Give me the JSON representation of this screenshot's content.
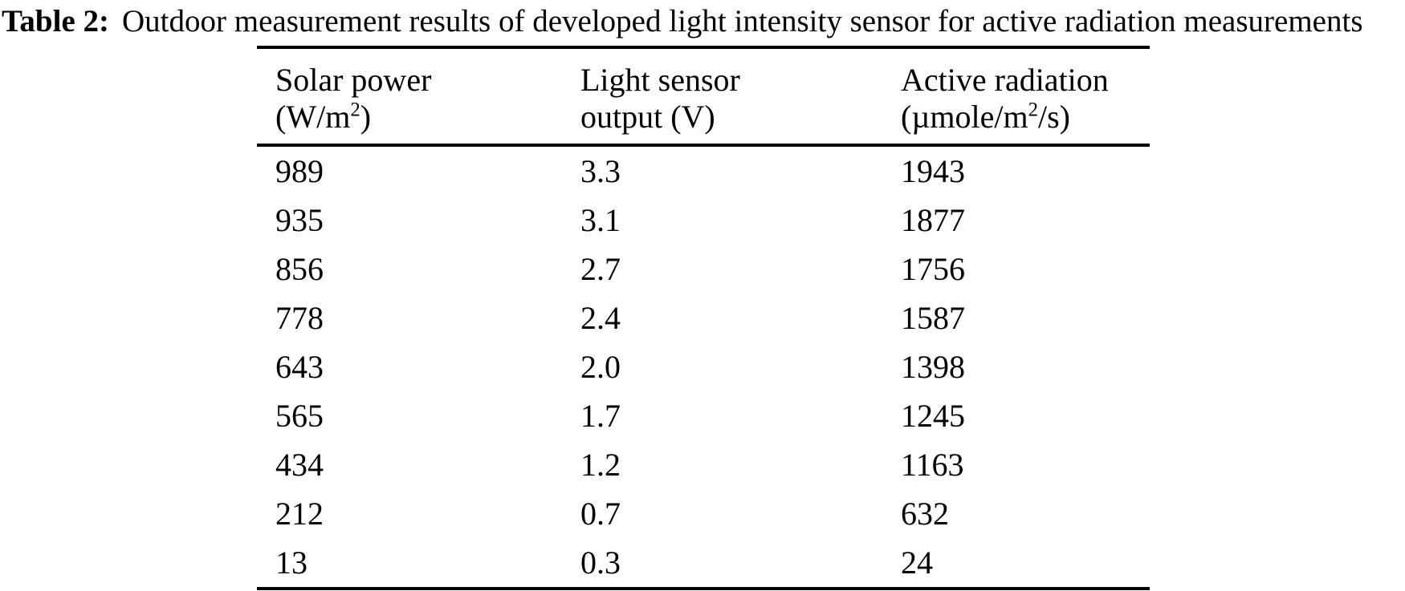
{
  "title": {
    "prefix": "Table 2:",
    "text": "Outdoor measurement results of developed light intensity sensor for active radiation measurements"
  },
  "table": {
    "header": [
      {
        "line1": "Solar power",
        "unit_pre": "(W/m",
        "unit_sup": "2",
        "unit_post": ")"
      },
      {
        "line1": "Light sensor",
        "unit_pre": "output (V)",
        "unit_sup": "",
        "unit_post": ""
      },
      {
        "line1": "Active radiation",
        "unit_pre": "(µmole/m",
        "unit_sup": "2",
        "unit_post": "/s)"
      }
    ],
    "rows": [
      [
        "989",
        "3.3",
        "1943"
      ],
      [
        "935",
        "3.1",
        "1877"
      ],
      [
        "856",
        "2.7",
        "1756"
      ],
      [
        "778",
        "2.4",
        "1587"
      ],
      [
        "643",
        "2.0",
        "1398"
      ],
      [
        "565",
        "1.7",
        "1245"
      ],
      [
        "434",
        "1.2",
        "1163"
      ],
      [
        "212",
        "0.7",
        "632"
      ],
      [
        "13",
        "0.3",
        "24"
      ]
    ]
  },
  "chart_data": {
    "type": "table",
    "title": "Table 2: Outdoor measurement results of developed light intensity sensor for active radiation measurements",
    "columns": [
      "Solar power (W/m2)",
      "Light sensor output (V)",
      "Active radiation (µmole/m2/s)"
    ],
    "rows": [
      [
        989,
        3.3,
        1943
      ],
      [
        935,
        3.1,
        1877
      ],
      [
        856,
        2.7,
        1756
      ],
      [
        778,
        2.4,
        1587
      ],
      [
        643,
        2.0,
        1398
      ],
      [
        565,
        1.7,
        1245
      ],
      [
        434,
        1.2,
        1163
      ],
      [
        212,
        0.7,
        632
      ],
      [
        13,
        0.3,
        24
      ]
    ]
  }
}
